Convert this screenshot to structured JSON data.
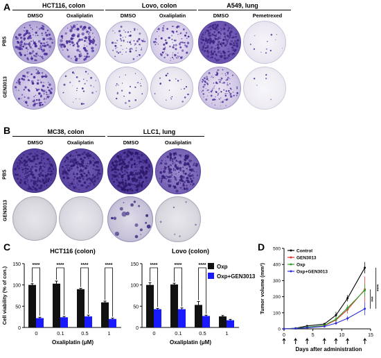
{
  "panelA": {
    "letter": "A",
    "groups": [
      {
        "title": "HCT116, colon",
        "cols": [
          "DMSO",
          "Oxaliplatin"
        ]
      },
      {
        "title": "Lovo, colon",
        "cols": [
          "DMSO",
          "Oxaliplatin"
        ]
      },
      {
        "title": "A549, lung",
        "cols": [
          "DMSO",
          "Pemetrexed"
        ]
      }
    ],
    "rows": [
      "PBS",
      "GEN3013"
    ]
  },
  "panelB": {
    "letter": "B",
    "groups": [
      {
        "title": "MC38, colon",
        "cols": [
          "DMSO",
          "Oxaliplatin"
        ]
      },
      {
        "title": "LLC1, lung",
        "cols": [
          "DMSO",
          "Oxaliplatin"
        ]
      }
    ],
    "rows": [
      "PBS",
      "GEN3013"
    ]
  },
  "panelC": {
    "letter": "C",
    "significance": "****"
  },
  "panelD": {
    "letter": "D"
  },
  "colors": {
    "crystal_violet": "#4a2d9a",
    "oxp_bar": "#111111",
    "oxp_gen_bar": "#1a1aff",
    "control": "#000000",
    "gen3013": "#e03030",
    "oxp": "#2ca02c",
    "oxp_gen3013": "#2a2ae0"
  },
  "chart_data": [
    {
      "type": "bar",
      "title": "HCT116 (colon)",
      "xlabel": "Oxaliplatin (μM)",
      "ylabel": "Cell viability (% of con.)",
      "categories": [
        "0",
        "0.1",
        "0.5",
        "1"
      ],
      "ylim": [
        0,
        150
      ],
      "yticks": [
        "0",
        "50",
        "100",
        "150"
      ],
      "series": [
        {
          "name": "Oxp",
          "values": [
            100,
            103,
            90,
            59
          ],
          "errors": [
            3,
            6,
            2,
            3
          ]
        },
        {
          "name": "Oxp+GEN3013",
          "values": [
            22,
            24,
            26,
            20
          ],
          "errors": [
            2,
            2,
            3,
            2
          ]
        }
      ],
      "annotations": [
        "****",
        "****",
        "****",
        "****"
      ]
    },
    {
      "type": "bar",
      "title": "Lovo (colon)",
      "xlabel": "Oxaliplatin (μM)",
      "ylabel": "",
      "categories": [
        "0",
        "0.1",
        "0.5",
        "1"
      ],
      "ylim": [
        0,
        150
      ],
      "yticks": [
        "0",
        "50",
        "100",
        "150"
      ],
      "series": [
        {
          "name": "Oxp",
          "values": [
            100,
            101,
            53,
            26
          ],
          "errors": [
            5,
            3,
            8,
            2
          ]
        },
        {
          "name": "Oxp+GEN3013",
          "values": [
            43,
            43,
            27,
            17
          ],
          "errors": [
            2,
            3,
            2,
            2
          ]
        }
      ],
      "annotations": [
        "****",
        "****",
        "****"
      ],
      "legend": "top-right"
    },
    {
      "type": "line",
      "xlabel": "Days after administration",
      "ylabel": "Tumor volume (mm³)",
      "xlim": [
        0,
        15
      ],
      "xticks": [
        "0",
        "5",
        "10",
        "15"
      ],
      "ylim": [
        0,
        500
      ],
      "yticks": [
        "0",
        "100",
        "200",
        "300",
        "400",
        "500"
      ],
      "x": [
        0,
        2,
        4,
        7,
        9,
        11,
        14
      ],
      "series": [
        {
          "name": "Control",
          "values": [
            0,
            4,
            18,
            30,
            85,
            190,
            380
          ],
          "errors": [
            0,
            2,
            4,
            6,
            20,
            20,
            35
          ]
        },
        {
          "name": "GEN3013",
          "values": [
            0,
            3,
            10,
            20,
            55,
            120,
            245
          ],
          "errors": [
            0,
            2,
            3,
            5,
            15,
            25,
            80
          ]
        },
        {
          "name": "Oxp",
          "values": [
            0,
            3,
            10,
            22,
            60,
            130,
            240
          ],
          "errors": [
            0,
            2,
            3,
            5,
            15,
            20,
            40
          ]
        },
        {
          "name": "Oxp+GEN3013",
          "values": [
            0,
            2,
            7,
            15,
            35,
            65,
            125
          ],
          "errors": [
            0,
            1,
            2,
            4,
            10,
            15,
            40
          ]
        }
      ],
      "dosing_days": [
        0,
        2,
        4,
        7,
        9,
        11,
        14
      ],
      "significance": [
        "***",
        "****"
      ],
      "legend": "top-left"
    }
  ]
}
